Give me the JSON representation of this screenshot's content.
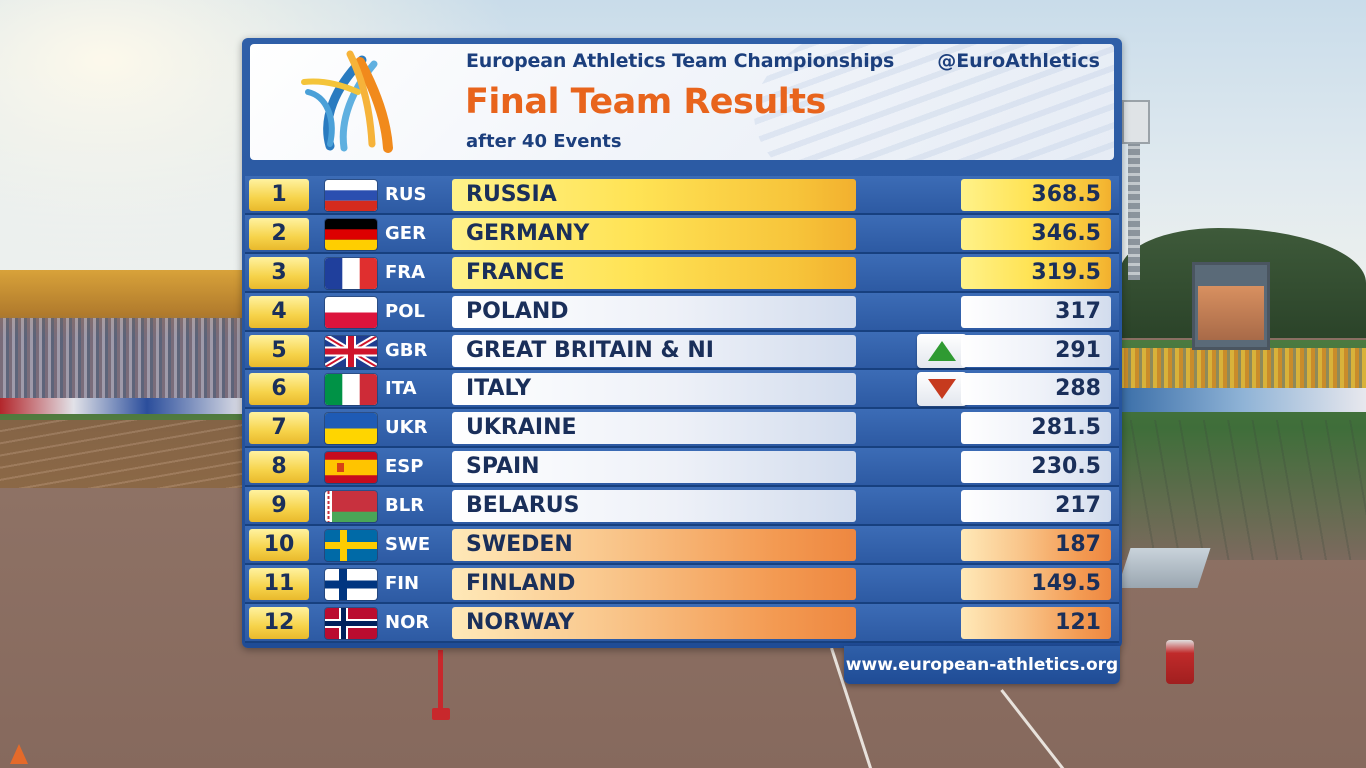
{
  "header": {
    "championship": "European Athletics Team Championships",
    "handle": "@EuroAthletics",
    "title": "Final Team Results",
    "subtitle": "after 40 Events"
  },
  "results": [
    {
      "rank": "1",
      "code": "RUS",
      "country": "RUSSIA",
      "score": "368.5",
      "tier": "gold",
      "flag": "russia-flag"
    },
    {
      "rank": "2",
      "code": "GER",
      "country": "GERMANY",
      "score": "346.5",
      "tier": "gold",
      "flag": "germany-flag"
    },
    {
      "rank": "3",
      "code": "FRA",
      "country": "FRANCE",
      "score": "319.5",
      "tier": "gold",
      "flag": "france-flag"
    },
    {
      "rank": "4",
      "code": "POL",
      "country": "POLAND",
      "score": "317",
      "tier": "white",
      "flag": "poland-flag"
    },
    {
      "rank": "5",
      "code": "GBR",
      "country": "GREAT BRITAIN & NI",
      "score": "291",
      "tier": "white",
      "flag": "uk-flag",
      "movement": "up"
    },
    {
      "rank": "6",
      "code": "ITA",
      "country": "ITALY",
      "score": "288",
      "tier": "white",
      "flag": "italy-flag",
      "movement": "down"
    },
    {
      "rank": "7",
      "code": "UKR",
      "country": "UKRAINE",
      "score": "281.5",
      "tier": "white",
      "flag": "ukraine-flag"
    },
    {
      "rank": "8",
      "code": "ESP",
      "country": "SPAIN",
      "score": "230.5",
      "tier": "white",
      "flag": "spain-flag"
    },
    {
      "rank": "9",
      "code": "BLR",
      "country": "BELARUS",
      "score": "217",
      "tier": "white",
      "flag": "belarus-flag"
    },
    {
      "rank": "10",
      "code": "SWE",
      "country": "SWEDEN",
      "score": "187",
      "tier": "orange",
      "flag": "sweden-flag"
    },
    {
      "rank": "11",
      "code": "FIN",
      "country": "FINLAND",
      "score": "149.5",
      "tier": "orange",
      "flag": "finland-flag"
    },
    {
      "rank": "12",
      "code": "NOR",
      "country": "NORWAY",
      "score": "121",
      "tier": "orange",
      "flag": "norway-flag"
    }
  ],
  "footer": {
    "url": "www.european-athletics.org"
  },
  "colors": {
    "panel_blue": "#2f5fa8",
    "title_orange": "#e8641c",
    "header_navy": "#1c3f7d",
    "rank_gold": "#f6d34a",
    "up_green": "#2f9a32",
    "down_red": "#c63a1e"
  }
}
